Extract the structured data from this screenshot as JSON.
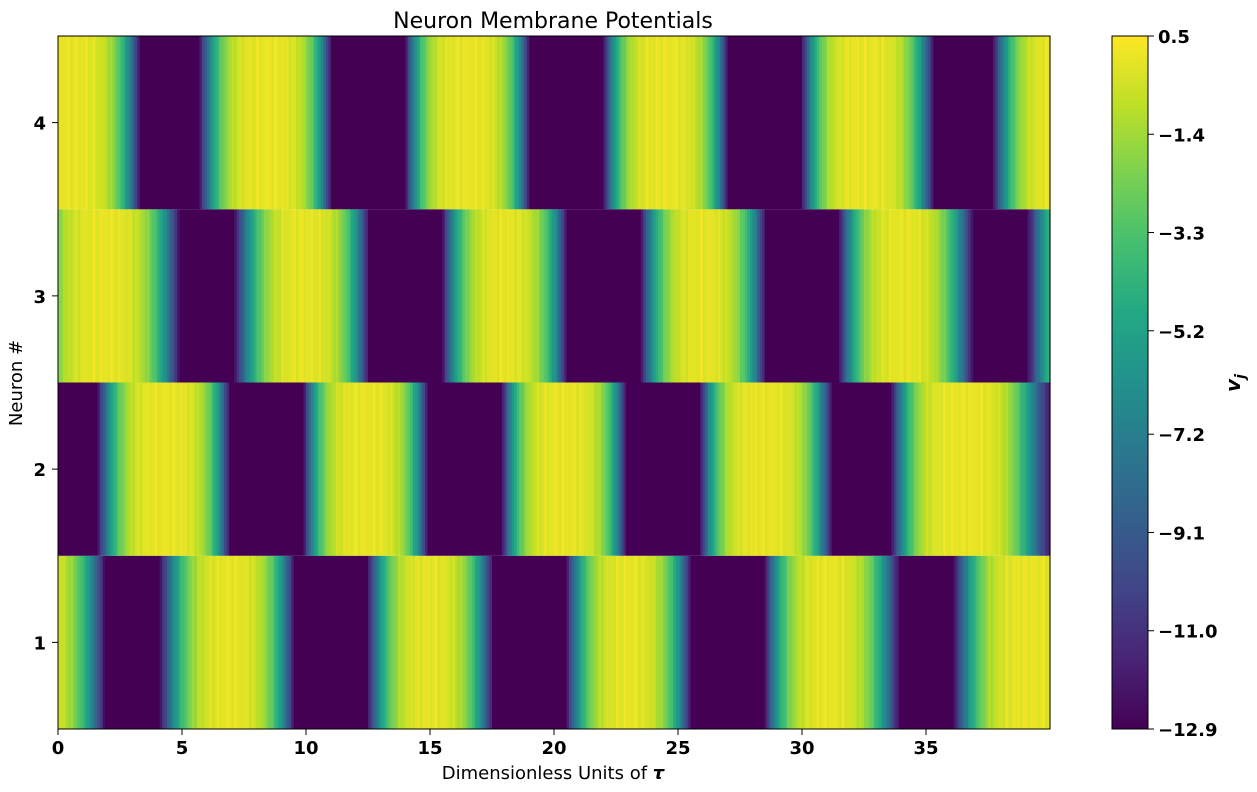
{
  "chart_data": {
    "type": "heatmap",
    "title": "Neuron Membrane Potentials",
    "xlabel_text": "Dimensionless Units of ",
    "xlabel_symbol": "τ",
    "ylabel": "Neuron #",
    "colorbar_label_main": "v",
    "colorbar_label_sub": "j",
    "xlim": [
      0,
      40
    ],
    "x_ticks": [
      0,
      5,
      10,
      15,
      20,
      25,
      30,
      35
    ],
    "rows": [
      "1",
      "2",
      "3",
      "4"
    ],
    "colormap": "viridis",
    "zlim": [
      -12.9,
      0.5
    ],
    "colorbar_ticks": [
      "0.5",
      "−1.4",
      "−3.3",
      "−5.2",
      "−7.2",
      "−9.1",
      "−11.0",
      "−12.9"
    ],
    "colorbar_tick_values": [
      0.5,
      -1.4,
      -3.3,
      -5.2,
      -7.2,
      -9.1,
      -11.0,
      -12.9
    ],
    "series": [
      {
        "name": "1",
        "period": 8.0,
        "trough_times": [
          3.0,
          11.0,
          19.0,
          27.0,
          35.0
        ],
        "trough_value": -10.5,
        "trough_halfwidth": 1.1
      },
      {
        "name": "2",
        "period": 8.0,
        "trough_times": [
          0.4,
          8.4,
          16.4,
          24.4,
          32.4
        ],
        "trough_value": -12.9,
        "trough_halfwidth": 1.0
      },
      {
        "name": "3",
        "period": 8.0,
        "trough_times": [
          6.0,
          14.0,
          22.0,
          30.0,
          38.0
        ],
        "trough_value": -10.5,
        "trough_halfwidth": 1.1
      },
      {
        "name": "4",
        "period": 8.0,
        "trough_times": [
          4.5,
          12.5,
          20.5,
          28.5,
          36.5
        ],
        "trough_value": -12.9,
        "trough_halfwidth": 1.0
      }
    ]
  }
}
